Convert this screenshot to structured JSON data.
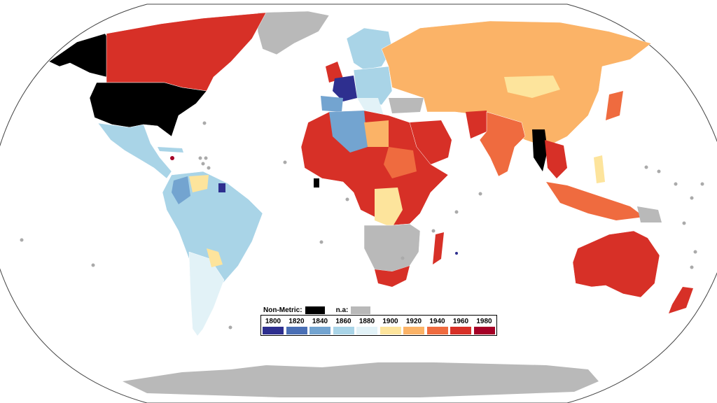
{
  "legend": {
    "non_metric_label": "Non-Metric:",
    "na_label": "n.a:",
    "non_metric_color": "#000000",
    "na_color": "#b9b9b9",
    "years": [
      {
        "year": "1800",
        "color": "#2e2f8f"
      },
      {
        "year": "1820",
        "color": "#4a6fb5"
      },
      {
        "year": "1840",
        "color": "#73a4d0"
      },
      {
        "year": "1860",
        "color": "#a9d4e7"
      },
      {
        "year": "1880",
        "color": "#e2f2f7"
      },
      {
        "year": "1900",
        "color": "#fde49c"
      },
      {
        "year": "1920",
        "color": "#fbb367"
      },
      {
        "year": "1940",
        "color": "#ef6b3f"
      },
      {
        "year": "1960",
        "color": "#d73027"
      },
      {
        "year": "1980",
        "color": "#a50026"
      }
    ]
  },
  "regions": [
    {
      "name": "Alaska",
      "category": "non-metric"
    },
    {
      "name": "United States",
      "category": "non-metric"
    },
    {
      "name": "Canada",
      "category": "1960"
    },
    {
      "name": "Greenland",
      "category": "n.a"
    },
    {
      "name": "Mexico",
      "category": "1860"
    },
    {
      "name": "South America",
      "category": "1860"
    },
    {
      "name": "Argentina",
      "category": "1880"
    },
    {
      "name": "Europe west",
      "category": "1860"
    },
    {
      "name": "France",
      "category": "1800"
    },
    {
      "name": "United Kingdom",
      "category": "1960"
    },
    {
      "name": "Iberia",
      "category": "1840"
    },
    {
      "name": "Russia / Central Asia",
      "category": "1920"
    },
    {
      "name": "Mongolia",
      "category": "1900"
    },
    {
      "name": "China",
      "category": "1920"
    },
    {
      "name": "India",
      "category": "1940"
    },
    {
      "name": "Myanmar",
      "category": "non-metric"
    },
    {
      "name": "North Africa",
      "category": "1960"
    },
    {
      "name": "Algeria",
      "category": "1840"
    },
    {
      "name": "Congo",
      "category": "1900"
    },
    {
      "name": "Southern Africa",
      "category": "n.a"
    },
    {
      "name": "South Africa",
      "category": "1960"
    },
    {
      "name": "Madagascar",
      "category": "1960"
    },
    {
      "name": "Liberia",
      "category": "non-metric"
    },
    {
      "name": "Indonesia",
      "category": "1940"
    },
    {
      "name": "Australia",
      "category": "1960"
    },
    {
      "name": "New Zealand",
      "category": "1960"
    },
    {
      "name": "Antarctica",
      "category": "n.a"
    }
  ]
}
